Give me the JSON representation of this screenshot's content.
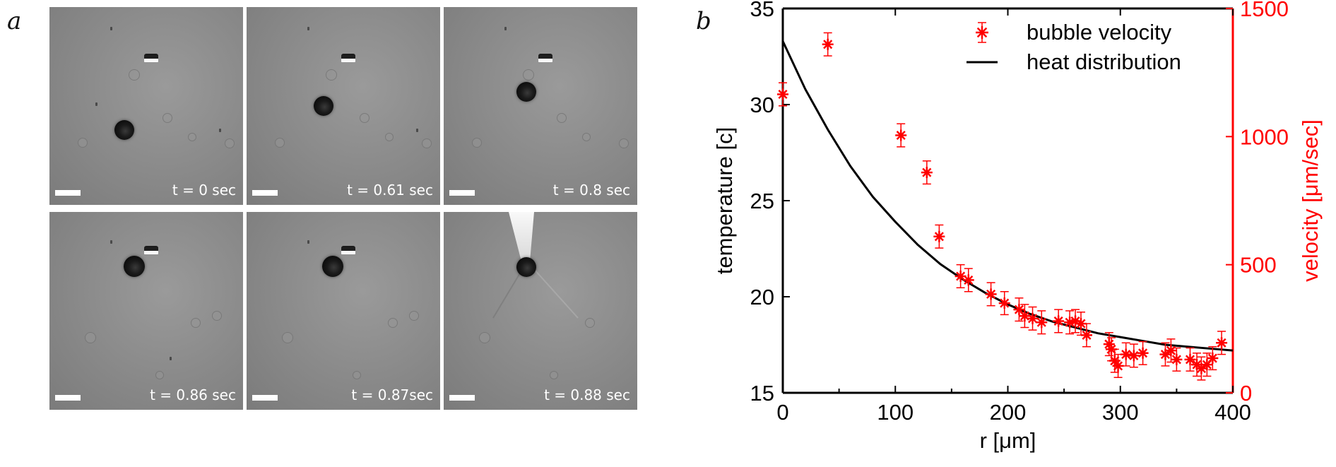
{
  "panel_a": {
    "letter": "a",
    "frames": [
      {
        "label": "t = 0 sec"
      },
      {
        "label": "t = 0.61 sec"
      },
      {
        "label": "t = 0.8 sec"
      },
      {
        "label": "t = 0.86 sec"
      },
      {
        "label": "t = 0.87sec"
      },
      {
        "label": "t = 0.88 sec"
      }
    ]
  },
  "panel_b": {
    "letter": "b"
  },
  "colors": {
    "velocity": "#ff0000",
    "heat": "#000000"
  },
  "chart_data": {
    "type": "scatter",
    "xlabel": "r [μm]",
    "ylabel_left": "temperature [c]",
    "ylabel_right": "velocity [μm/sec]",
    "xlim": [
      0,
      400
    ],
    "ylim_left": [
      15,
      35
    ],
    "ylim_right": [
      0,
      1500
    ],
    "x_ticks": [
      "0",
      "100",
      "200",
      "300",
      "400"
    ],
    "y_left_ticks": [
      "15",
      "20",
      "25",
      "30",
      "35"
    ],
    "y_right_ticks": [
      "0",
      "500",
      "1000",
      "1500"
    ],
    "legend_position": "top-right",
    "series": [
      {
        "name": "bubble velocity",
        "axis": "right",
        "marker": "asterisk",
        "color": "#ff0000",
        "x": [
          0,
          40,
          105,
          128,
          139,
          158,
          165,
          185,
          197,
          210,
          215,
          222,
          230,
          245,
          255,
          260,
          265,
          270,
          290,
          292,
          295,
          298,
          305,
          312,
          320,
          340,
          345,
          350,
          362,
          368,
          372,
          377,
          382,
          390
        ],
        "y": [
          1165,
          1360,
          1005,
          860,
          610,
          455,
          440,
          385,
          350,
          325,
          300,
          290,
          275,
          280,
          275,
          280,
          270,
          225,
          190,
          170,
          125,
          105,
          150,
          145,
          155,
          150,
          165,
          130,
          130,
          110,
          95,
          110,
          135,
          195
        ],
        "error": [
          45,
          45,
          45,
          45,
          45,
          45,
          45,
          45,
          45,
          45,
          45,
          45,
          45,
          45,
          45,
          45,
          45,
          45,
          45,
          45,
          45,
          45,
          45,
          45,
          45,
          45,
          45,
          45,
          45,
          45,
          45,
          45,
          45,
          45
        ]
      },
      {
        "name": "heat distribution",
        "axis": "left",
        "type": "line",
        "color": "#000000",
        "x": [
          0,
          20,
          40,
          60,
          80,
          100,
          120,
          140,
          160,
          180,
          200,
          220,
          240,
          260,
          280,
          300,
          320,
          340,
          360,
          380,
          400
        ],
        "y": [
          33.3,
          30.8,
          28.7,
          26.8,
          25.2,
          23.9,
          22.7,
          21.7,
          20.9,
          20.2,
          19.6,
          19.1,
          18.7,
          18.4,
          18.1,
          17.9,
          17.7,
          17.5,
          17.4,
          17.3,
          17.2
        ]
      }
    ]
  }
}
